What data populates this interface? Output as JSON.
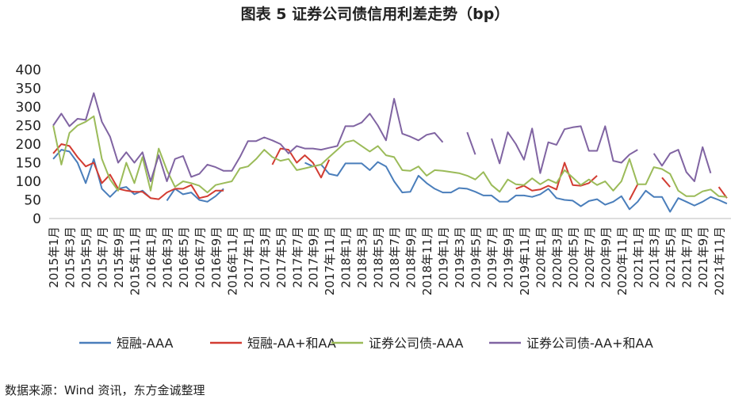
{
  "chart_data": {
    "type": "line",
    "title": "图表 5  证券公司债信用利差走势（bp）",
    "source": "数据来源：Wind 资讯，东方金诚整理",
    "categories": [
      "2015年1月",
      null,
      "2015年3月",
      null,
      "2015年5月",
      null,
      "2015年7月",
      null,
      "2015年9月",
      null,
      "2015年11月",
      null,
      "2016年1月",
      null,
      "2016年3月",
      null,
      "2016年5月",
      null,
      "2016年7月",
      null,
      "2016年9月",
      null,
      "2016年11月",
      null,
      "2017年1月",
      null,
      "2017年3月",
      null,
      "2017年5月",
      null,
      "2017年7月",
      null,
      "2017年9月",
      null,
      "2017年11月",
      null,
      "2018年1月",
      null,
      "2018年3月",
      null,
      "2018年5月",
      null,
      "2018年7月",
      null,
      "2018年9月",
      null,
      "2018年11月",
      null,
      "2019年1月",
      null,
      "2019年3月",
      null,
      "2019年5月",
      null,
      "2019年7月",
      null,
      "2019年9月",
      null,
      "2019年11月",
      null,
      "2020年1月",
      null,
      "2020年3月",
      null,
      "2020年5月",
      null,
      "2020年7月",
      null,
      "2020年9月",
      null,
      "2020年11月",
      null,
      "2021年1月",
      null,
      "2021年3月",
      null,
      "2021年5月",
      null,
      "2021年7月",
      null,
      "2021年9月",
      null,
      "2021年11月",
      null
    ],
    "series": [
      {
        "name": "短融-AAA",
        "color": "#4a7ebb",
        "values": [
          160,
          185,
          180,
          150,
          95,
          160,
          80,
          58,
          80,
          85,
          65,
          75,
          55,
          null,
          48,
          80,
          65,
          70,
          50,
          45,
          60,
          80,
          null,
          null,
          null,
          null,
          null,
          null,
          null,
          null,
          null,
          150,
          140,
          145,
          120,
          115,
          148,
          148,
          148,
          130,
          152,
          140,
          100,
          70,
          72,
          115,
          95,
          80,
          70,
          70,
          82,
          80,
          72,
          62,
          62,
          45,
          45,
          62,
          62,
          58,
          65,
          80,
          55,
          50,
          48,
          33,
          47,
          52,
          37,
          45,
          60,
          25,
          45,
          75,
          58,
          58,
          18,
          55,
          45,
          35,
          45,
          58,
          50,
          40
        ]
      },
      {
        "name": "短融-AA+和AA",
        "color": "#d23c32",
        "values": [
          175,
          200,
          195,
          165,
          140,
          150,
          95,
          118,
          80,
          75,
          72,
          72,
          55,
          52,
          70,
          80,
          80,
          90,
          55,
          60,
          75,
          75,
          null,
          null,
          null,
          null,
          null,
          145,
          188,
          185,
          150,
          170,
          150,
          110,
          158,
          null,
          null,
          null,
          null,
          null,
          null,
          null,
          null,
          null,
          null,
          null,
          null,
          null,
          null,
          null,
          null,
          null,
          null,
          null,
          null,
          null,
          null,
          80,
          88,
          75,
          78,
          88,
          78,
          150,
          90,
          88,
          95,
          115,
          null,
          null,
          null,
          50,
          92,
          null,
          null,
          110,
          85,
          null,
          null,
          null,
          null,
          null,
          85,
          55
        ]
      },
      {
        "name": "证券公司债-AAA",
        "color": "#9bbb59",
        "values": [
          250,
          145,
          230,
          250,
          260,
          275,
          160,
          105,
          75,
          150,
          95,
          165,
          75,
          188,
          130,
          85,
          100,
          95,
          88,
          70,
          90,
          95,
          100,
          135,
          140,
          160,
          185,
          165,
          155,
          160,
          130,
          135,
          140,
          145,
          165,
          185,
          205,
          210,
          195,
          180,
          195,
          170,
          165,
          130,
          128,
          140,
          115,
          130,
          128,
          125,
          122,
          115,
          105,
          125,
          90,
          72,
          105,
          92,
          90,
          108,
          92,
          105,
          95,
          130,
          110,
          90,
          105,
          90,
          100,
          75,
          100,
          160,
          92,
          92,
          138,
          133,
          120,
          75,
          60,
          60,
          73,
          78,
          60,
          58
        ]
      },
      {
        "name": "证券公司债-AA+和AA",
        "color": "#8064a2",
        "values": [
          250,
          282,
          248,
          268,
          265,
          337,
          260,
          220,
          150,
          178,
          150,
          178,
          100,
          170,
          100,
          160,
          168,
          112,
          120,
          145,
          138,
          128,
          128,
          165,
          208,
          208,
          218,
          210,
          200,
          175,
          195,
          188,
          188,
          185,
          190,
          195,
          248,
          248,
          258,
          282,
          250,
          210,
          322,
          228,
          220,
          210,
          225,
          230,
          205,
          null,
          null,
          232,
          172,
          null,
          215,
          148,
          232,
          200,
          158,
          242,
          122,
          205,
          198,
          240,
          245,
          248,
          182,
          182,
          248,
          155,
          150,
          172,
          185,
          null,
          175,
          142,
          175,
          185,
          125,
          100,
          192,
          122,
          null,
          null
        ]
      }
    ],
    "ylim": [
      0,
      400
    ],
    "yticks": [
      0,
      50,
      100,
      150,
      200,
      250,
      300,
      350,
      400
    ],
    "grid": false
  }
}
